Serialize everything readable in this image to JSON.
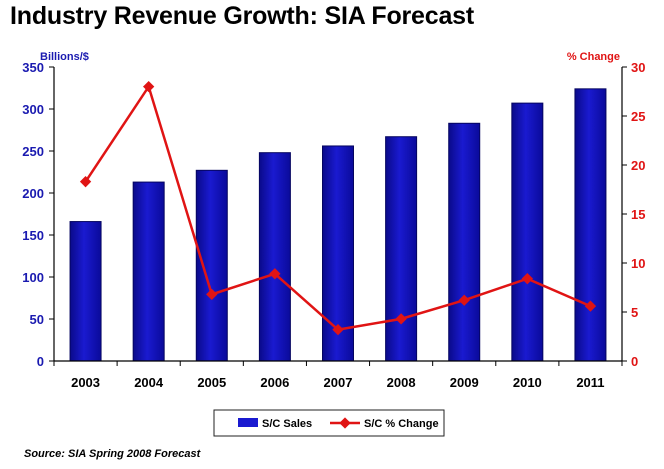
{
  "title": "Industry Revenue Growth: SIA Forecast",
  "source": "Source: SIA Spring 2008 Forecast",
  "colors": {
    "bar": "#1a1ad0",
    "line": "#e01414",
    "left_axis": "#1a1ab0",
    "right_axis": "#e01414"
  },
  "chart_data": {
    "type": "bar",
    "categories": [
      "2003",
      "2004",
      "2005",
      "2006",
      "2007",
      "2008",
      "2009",
      "2010",
      "2011"
    ],
    "series": [
      {
        "name": "S/C Sales",
        "type": "bar",
        "axis": "left",
        "values": [
          166,
          213,
          227,
          248,
          256,
          267,
          283,
          307,
          324
        ]
      },
      {
        "name": "S/C % Change",
        "type": "line",
        "axis": "right",
        "values": [
          18.3,
          28.0,
          6.8,
          8.9,
          3.2,
          4.3,
          6.2,
          8.4,
          5.6
        ]
      }
    ],
    "left_axis": {
      "label": "Billions/$",
      "min": 0,
      "max": 350,
      "ticks": [
        "0",
        "50",
        "100",
        "150",
        "200",
        "250",
        "300",
        "350"
      ]
    },
    "right_axis": {
      "label": "% Change",
      "min": 0,
      "max": 30,
      "ticks": [
        "0",
        "5",
        "10",
        "15",
        "20",
        "25",
        "30"
      ]
    },
    "legend": {
      "placement": "bottom",
      "items": [
        "S/C Sales",
        "S/C % Change"
      ]
    },
    "grid": false
  }
}
